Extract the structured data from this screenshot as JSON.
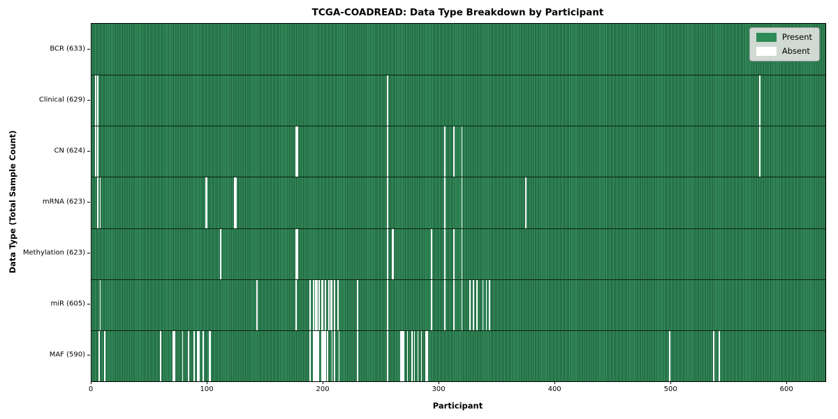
{
  "chart": {
    "title": "TCGA-COADREAD: Data Type Breakdown by Participant",
    "xlabel": "Participant",
    "ylabel": "Data Type (Total Sample Count)",
    "legend": {
      "present_label": "Present",
      "absent_label": "Absent"
    },
    "colors": {
      "present_fill": "#2e8b57",
      "present_edge": "#1c5634",
      "absent_fill": "#ffffff",
      "legend_bg": "#dee2de",
      "axis": "#000000"
    }
  },
  "chart_data": {
    "type": "heatmap",
    "title": "TCGA-COADREAD: Data Type Breakdown by Participant",
    "xlabel": "Participant",
    "ylabel": "Data Type (Total Sample Count)",
    "legend_entries": [
      "Present",
      "Absent"
    ],
    "legend_position": "upper right",
    "x_axis": {
      "min": 0,
      "max": 633,
      "ticks": [
        0,
        100,
        200,
        300,
        400,
        500,
        600
      ]
    },
    "total_participants": 633,
    "rows": [
      {
        "label": "BCR (633)",
        "name": "BCR",
        "present_count": 633,
        "absent_participants": []
      },
      {
        "label": "Clinical (629)",
        "name": "Clinical",
        "present_count": 629,
        "absent_participants": [
          3,
          5,
          255,
          576
        ]
      },
      {
        "label": "CN (624)",
        "name": "CN",
        "present_count": 624,
        "absent_participants": [
          3,
          5,
          176,
          177,
          255,
          304,
          312,
          319,
          576
        ]
      },
      {
        "label": "mRNA (623)",
        "name": "mRNA",
        "present_count": 623,
        "absent_participants": [
          5,
          7,
          98,
          99,
          123,
          124,
          255,
          304,
          319,
          374
        ]
      },
      {
        "label": "Methylation (623)",
        "name": "Methylation",
        "present_count": 623,
        "absent_participants": [
          111,
          176,
          177,
          255,
          259,
          260,
          293,
          304,
          312,
          319
        ]
      },
      {
        "label": "miR (605)",
        "name": "miR",
        "present_count": 605,
        "absent_participants": [
          7,
          142,
          176,
          188,
          191,
          193,
          194,
          196,
          198,
          199,
          201,
          204,
          206,
          207,
          209,
          212,
          229,
          255,
          293,
          304,
          312,
          319,
          326,
          329,
          332,
          337,
          340,
          343
        ]
      },
      {
        "label": "MAF (590)",
        "name": "MAF",
        "present_count": 590,
        "absent_participants": [
          6,
          11,
          59,
          70,
          71,
          78,
          83,
          88,
          91,
          92,
          96,
          101,
          102,
          188,
          191,
          192,
          193,
          194,
          195,
          198,
          199,
          200,
          201,
          203,
          207,
          209,
          213,
          229,
          255,
          266,
          267,
          268,
          269,
          272,
          276,
          278,
          281,
          284,
          288,
          289,
          498,
          536,
          541
        ]
      }
    ]
  }
}
